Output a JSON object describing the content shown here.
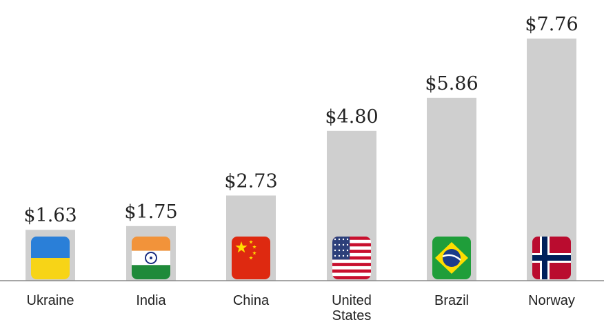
{
  "chart_data": {
    "type": "bar",
    "categories": [
      "Ukraine",
      "India",
      "China",
      "United States",
      "Brazil",
      "Norway"
    ],
    "category_label_lines": [
      [
        "Ukraine"
      ],
      [
        "India"
      ],
      [
        "China"
      ],
      [
        "United",
        "States"
      ],
      [
        "Brazil"
      ],
      [
        "Norway"
      ]
    ],
    "values": [
      1.63,
      1.75,
      2.73,
      4.8,
      5.86,
      7.76
    ],
    "value_labels": [
      "$1.63",
      "$1.75",
      "$2.73",
      "$4.80",
      "$5.86",
      "$7.76"
    ],
    "flags": [
      "flag-ukraine-icon",
      "flag-india-icon",
      "flag-china-icon",
      "flag-united-states-icon",
      "flag-brazil-icon",
      "flag-norway-icon"
    ],
    "ylim": [
      0,
      8
    ],
    "grid": false,
    "bar_color": "#cfcfcf",
    "text_color": "#222222",
    "axis_color": "#888888"
  }
}
